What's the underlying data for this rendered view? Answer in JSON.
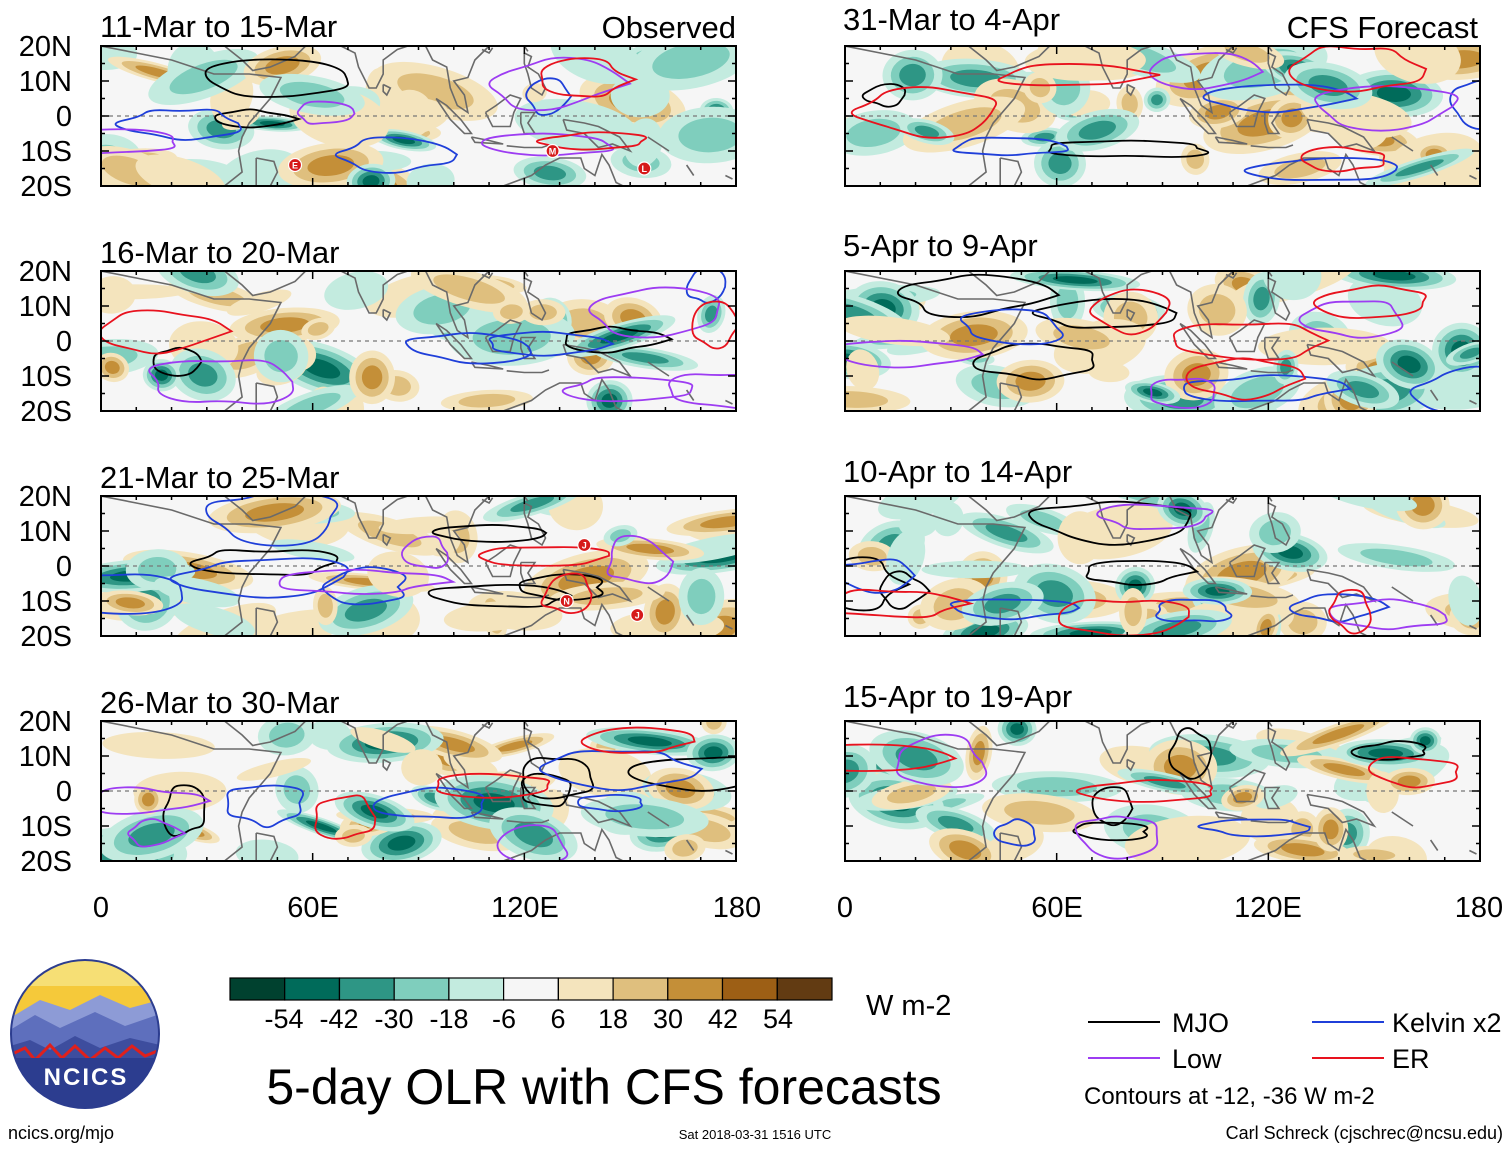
{
  "colors": {
    "scale": [
      "#00412f",
      "#006b5a",
      "#2e9685",
      "#7fcebd",
      "#c3ebdf",
      "#f6f6f6",
      "#f4e4bd",
      "#dfbf7e",
      "#c48f38",
      "#9d5f15",
      "#623b12"
    ],
    "mjo": "#000000",
    "kelvin": "#1f3fd9",
    "low": "#9d3cf2",
    "er": "#e8121e",
    "land": "#6a6a6a"
  },
  "lat_labels": [
    "20N",
    "10N",
    "0",
    "10S",
    "20S"
  ],
  "lon_labels": [
    "0",
    "60E",
    "120E",
    "180"
  ],
  "panels_left": {
    "column_title": "Observed",
    "items": [
      {
        "date": "11-Mar to 15-Mar",
        "markers": [
          {
            "lon": 55,
            "lat": -14,
            "letter": "E"
          },
          {
            "lon": 128,
            "lat": -10,
            "letter": "M"
          },
          {
            "lon": 154,
            "lat": -15,
            "letter": "L"
          }
        ]
      },
      {
        "date": "16-Mar to 20-Mar",
        "markers": []
      },
      {
        "date": "21-Mar to 25-Mar",
        "markers": [
          {
            "lon": 137,
            "lat": 6,
            "letter": "J"
          },
          {
            "lon": 132,
            "lat": -10,
            "letter": "N"
          },
          {
            "lon": 152,
            "lat": -14,
            "letter": "J"
          }
        ]
      },
      {
        "date": "26-Mar to 30-Mar",
        "markers": []
      }
    ]
  },
  "panels_right": {
    "column_title": "CFS Forecast",
    "items": [
      {
        "date": "31-Mar to 4-Apr",
        "markers": []
      },
      {
        "date": "5-Apr to 9-Apr",
        "markers": []
      },
      {
        "date": "10-Apr to 14-Apr",
        "markers": []
      },
      {
        "date": "15-Apr to 19-Apr",
        "markers": []
      }
    ]
  },
  "colorbar": {
    "tick_labels": [
      "-54",
      "-42",
      "-30",
      "-18",
      "-6",
      "6",
      "18",
      "30",
      "42",
      "54"
    ],
    "units": "W m-2"
  },
  "title": "5-day OLR with CFS forecasts",
  "legend": {
    "items": [
      {
        "label": "MJO",
        "key": "mjo"
      },
      {
        "label": "Kelvin x2",
        "key": "kelvin"
      },
      {
        "label": "Low",
        "key": "low"
      },
      {
        "label": "ER",
        "key": "er"
      }
    ],
    "note": "Contours at -12, -36 W m-2"
  },
  "logo_text": "NCICS",
  "footer": {
    "url": "ncics.org/mjo",
    "timestamp": "Sat 2018-03-31 1516 UTC",
    "credit": "Carl Schreck (cjschrec@ncsu.edu)"
  }
}
